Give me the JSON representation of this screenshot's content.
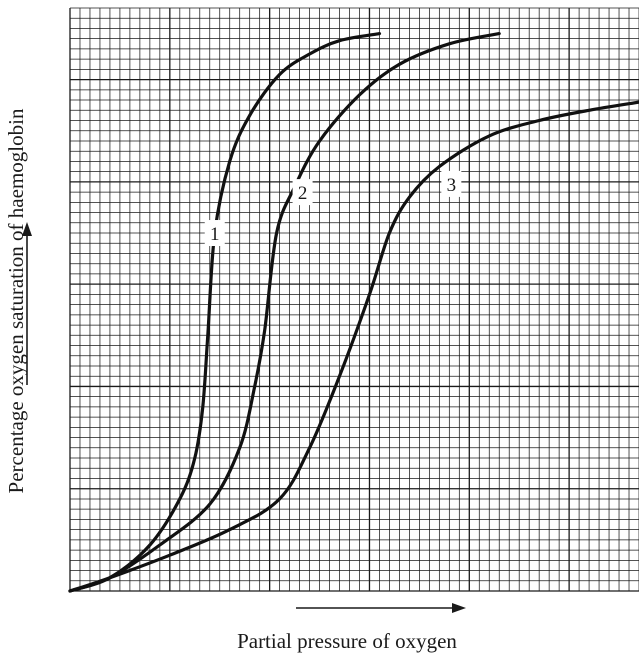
{
  "chart_data": {
    "type": "line",
    "xlabel": "Partial pressure of oxygen",
    "ylabel": "Percentage oxygen saturation of haemoglobin",
    "xlim": [
      0,
      57
    ],
    "ylim": [
      0,
      57
    ],
    "grid": true,
    "series": [
      {
        "name": "1",
        "x": [
          0,
          4,
          8,
          11,
          12.5,
          13.3,
          13.8,
          14.5,
          16,
          18,
          21,
          24,
          27,
          31
        ],
        "y": [
          0,
          1.3,
          4.5,
          9,
          13,
          18,
          25,
          35,
          42,
          46.5,
          50.5,
          52.5,
          53.8,
          54.5
        ]
      },
      {
        "name": "2",
        "x": [
          0,
          4,
          9,
          14,
          17,
          18.5,
          19.5,
          20.7,
          22.5,
          25,
          29,
          33,
          38,
          43
        ],
        "y": [
          0,
          1.3,
          4.5,
          8.5,
          14,
          20,
          25.5,
          35,
          39.5,
          44,
          48.5,
          51.5,
          53.5,
          54.5
        ]
      },
      {
        "name": "3",
        "x": [
          0,
          4,
          10,
          16,
          21,
          24,
          27,
          30,
          32,
          34,
          37,
          42,
          47,
          52,
          57
        ],
        "y": [
          0,
          1.3,
          3.5,
          6,
          9,
          14,
          21,
          29,
          35,
          38.5,
          41.5,
          44.5,
          46,
          47,
          47.8
        ]
      }
    ]
  }
}
